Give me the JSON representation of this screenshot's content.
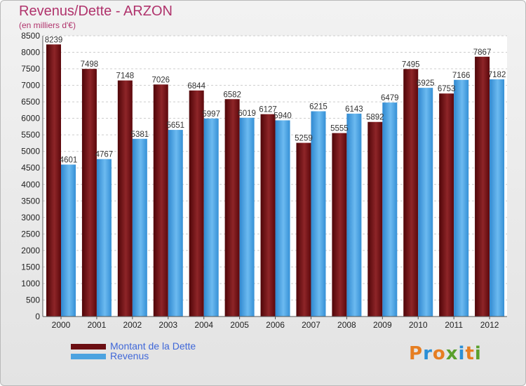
{
  "header": {
    "title": "Revenus/Dette - ARZON",
    "subtitle": "(en milliers d'€)"
  },
  "legend": {
    "items": [
      {
        "label": "Montant de la Dette",
        "color": "#6b0e12"
      },
      {
        "label": "Revenus",
        "color": "#4ca3e0"
      }
    ]
  },
  "logo": {
    "text": "Proxiti",
    "colors": [
      "#e67e22",
      "#2b8fd6",
      "#e67e22",
      "#5aa02c",
      "#2b8fd6",
      "#e67e22",
      "#5aa02c"
    ]
  },
  "chart_data": {
    "type": "bar",
    "categories": [
      "2000",
      "2001",
      "2002",
      "2003",
      "2004",
      "2005",
      "2006",
      "2007",
      "2008",
      "2009",
      "2010",
      "2011",
      "2012"
    ],
    "series": [
      {
        "name": "Montant de la Dette",
        "color": "#6b0e12",
        "values": [
          8239,
          7498,
          7148,
          7026,
          6844,
          6582,
          6127,
          5259,
          5555,
          5892,
          7495,
          6753,
          7867
        ]
      },
      {
        "name": "Revenus",
        "color": "#4ca3e0",
        "values": [
          4601,
          4767,
          5381,
          5651,
          5997,
          6019,
          5940,
          6215,
          6143,
          6479,
          6925,
          7166,
          7182
        ]
      }
    ],
    "data_labels": [
      [
        "8239",
        "7498",
        "7148",
        "7026",
        "6844",
        "6582",
        "6127",
        "5259",
        "5555",
        "5892",
        "7495",
        "6753",
        "7867"
      ],
      [
        "4601",
        "4767",
        "5381",
        "5651",
        "5997",
        "6019",
        "5940",
        "6215",
        "6143",
        "6479",
        "6925",
        "7166",
        "7182"
      ]
    ],
    "yticks": [
      "0",
      "500",
      "1000",
      "1500",
      "2000",
      "2500",
      "3000",
      "3500",
      "4000",
      "4500",
      "5000",
      "5500",
      "6000",
      "6500",
      "7000",
      "7500",
      "8000",
      "8500"
    ],
    "ylim": [
      0,
      8500
    ],
    "grid": true,
    "legend_position": "bottom-left"
  }
}
